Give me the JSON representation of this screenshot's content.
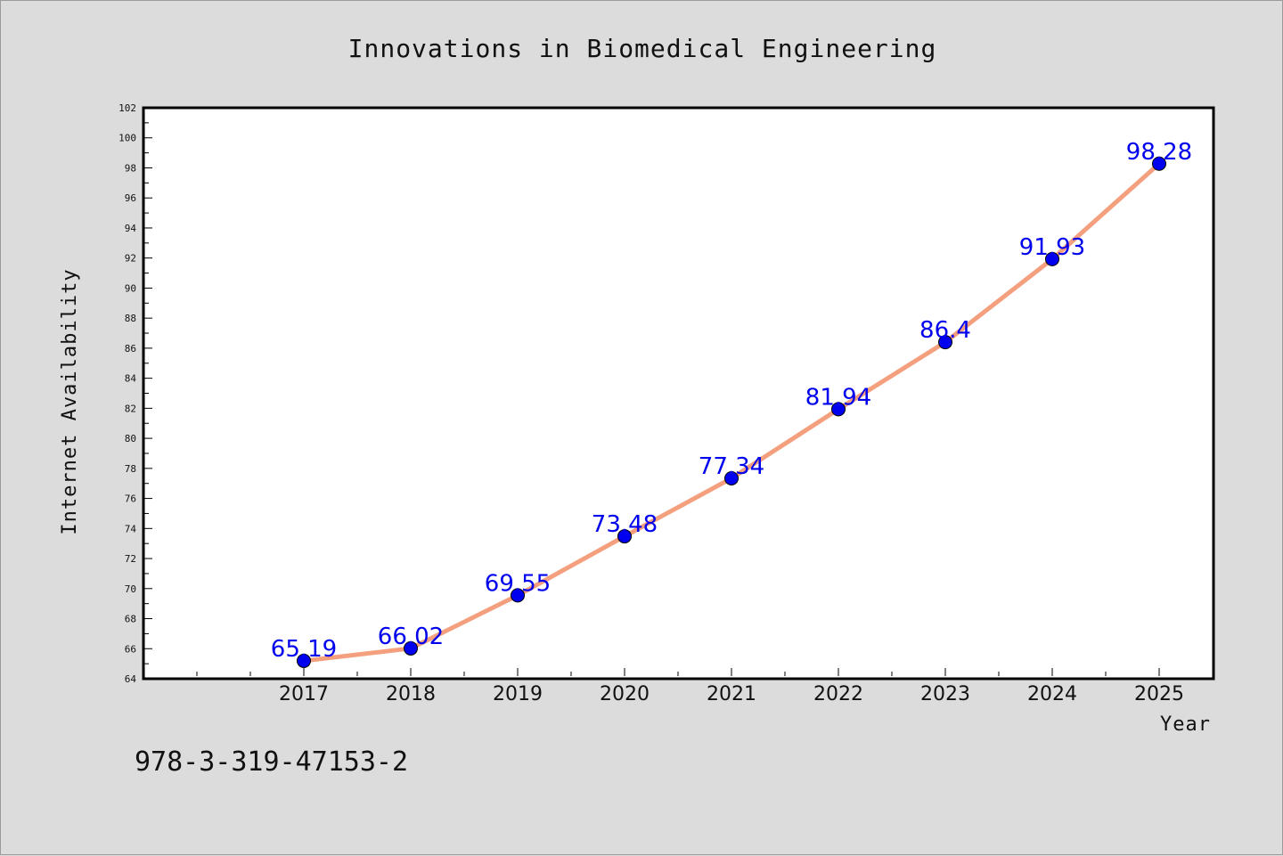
{
  "chart_data": {
    "type": "line",
    "title": "Innovations in Biomedical Engineering",
    "xlabel": "Year",
    "ylabel": "Internet Availability",
    "categories": [
      "2017",
      "2018",
      "2019",
      "2020",
      "2021",
      "2022",
      "2023",
      "2024",
      "2025"
    ],
    "series": [
      {
        "values": [
          65.19,
          66.02,
          69.55,
          73.48,
          77.34,
          81.94,
          86.4,
          91.93,
          98.28
        ],
        "labels": [
          "65.19",
          "66.02",
          "69.55",
          "73.48",
          "77.34",
          "81.94",
          "86.4",
          "91.93",
          "98.28"
        ],
        "line_color": "#f4a07e",
        "marker_color": "#0000ee"
      }
    ],
    "ylim": [
      64,
      102
    ],
    "yticks": [
      "64",
      "66",
      "68",
      "70",
      "72",
      "74",
      "76",
      "78",
      "80",
      "82",
      "84",
      "86",
      "88",
      "90",
      "92",
      "94",
      "96",
      "98",
      "100",
      "102"
    ],
    "grid": false,
    "legend": "none"
  },
  "footer": {
    "code": "978-3-319-47153-2"
  }
}
